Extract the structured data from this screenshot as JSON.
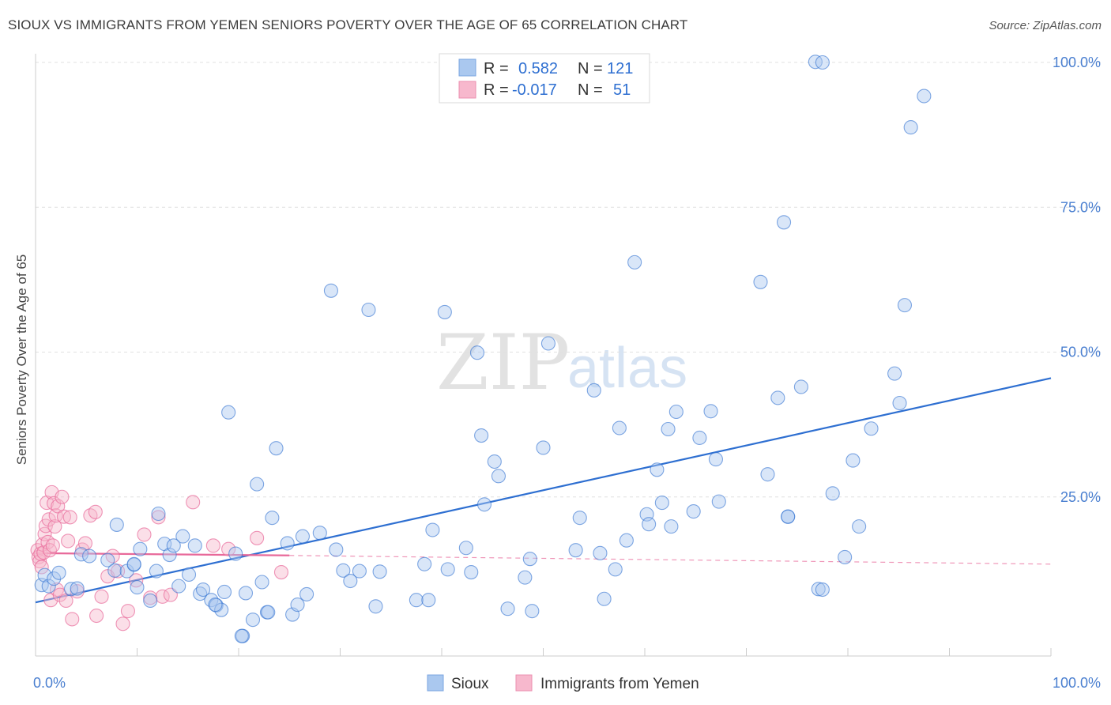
{
  "title": "SIOUX VS IMMIGRANTS FROM YEMEN SENIORS POVERTY OVER THE AGE OF 65 CORRELATION CHART",
  "source": "Source: ZipAtlas.com",
  "watermark": {
    "zip": "ZIP",
    "atlas": "atlas"
  },
  "colors": {
    "blue": "#2e6fd1",
    "blue_fill": "#aac8ef",
    "pink": "#e8699a",
    "pink_fill": "#f7b8cd",
    "grid": "#e0e0e0",
    "axis_label": "#4a7fd0"
  },
  "legend": {
    "rows": [
      {
        "r_label": "R =",
        "r_value": "0.582",
        "n_label": "N =",
        "n_value": "121"
      },
      {
        "r_label": "R =",
        "r_value": "-0.017",
        "n_label": "N =",
        "n_value": "51"
      }
    ]
  },
  "chart_data": {
    "type": "scatter",
    "title": "SIOUX VS IMMIGRANTS FROM YEMEN SENIORS POVERTY OVER THE AGE OF 65 CORRELATION CHART",
    "xlabel": "",
    "ylabel": "Seniors Poverty Over the Age of 65",
    "xlim": [
      0,
      100
    ],
    "ylim": [
      0,
      102
    ],
    "x_tick_labels": [
      "0.0%",
      "100.0%"
    ],
    "y_ticks": [
      25,
      50,
      75,
      100
    ],
    "y_tick_labels": [
      "25.0%",
      "50.0%",
      "75.0%",
      "100.0%"
    ],
    "legend_position": "top-center",
    "series": [
      {
        "name": "Sioux",
        "color": "#2e6fd1",
        "r": 0.582,
        "n": 121,
        "trend": {
          "x": [
            0,
            100
          ],
          "y": [
            6.8,
            45.5
          ],
          "style": "solid"
        },
        "points": [
          [
            0.6,
            9.8
          ],
          [
            0.9,
            11.5
          ],
          [
            1.3,
            9.6
          ],
          [
            1.8,
            10.9
          ],
          [
            2.3,
            11.9
          ],
          [
            3.5,
            9.1
          ],
          [
            4.5,
            15.1
          ],
          [
            4.1,
            9.2
          ],
          [
            5.3,
            14.8
          ],
          [
            7.1,
            14.1
          ],
          [
            7.8,
            12.3
          ],
          [
            9.0,
            12.2
          ],
          [
            9.7,
            13.3
          ],
          [
            10.3,
            16.0
          ],
          [
            8.0,
            20.2
          ],
          [
            10.0,
            9.4
          ],
          [
            11.3,
            7.1
          ],
          [
            11.9,
            12.2
          ],
          [
            12.1,
            22.1
          ],
          [
            12.7,
            16.9
          ],
          [
            13.2,
            15.0
          ],
          [
            14.1,
            9.6
          ],
          [
            14.5,
            18.2
          ],
          [
            15.1,
            11.6
          ],
          [
            15.7,
            16.6
          ],
          [
            16.2,
            8.3
          ],
          [
            16.5,
            9.0
          ],
          [
            17.3,
            7.2
          ],
          [
            17.8,
            6.3
          ],
          [
            18.3,
            5.5
          ],
          [
            18.6,
            8.6
          ],
          [
            19.0,
            39.6
          ],
          [
            19.7,
            15.2
          ],
          [
            20.4,
            1.0
          ],
          [
            20.7,
            8.4
          ],
          [
            21.4,
            3.8
          ],
          [
            21.8,
            27.2
          ],
          [
            22.3,
            10.3
          ],
          [
            22.8,
            5.1
          ],
          [
            23.3,
            21.4
          ],
          [
            23.7,
            33.4
          ],
          [
            24.8,
            17.0
          ],
          [
            25.3,
            4.7
          ],
          [
            25.8,
            6.4
          ],
          [
            26.3,
            18.2
          ],
          [
            26.7,
            8.2
          ],
          [
            28.0,
            18.8
          ],
          [
            29.1,
            60.6
          ],
          [
            29.6,
            15.9
          ],
          [
            30.3,
            12.3
          ],
          [
            31.0,
            10.5
          ],
          [
            31.9,
            12.2
          ],
          [
            32.8,
            57.3
          ],
          [
            33.5,
            6.1
          ],
          [
            33.9,
            12.1
          ],
          [
            37.5,
            7.2
          ],
          [
            38.3,
            13.4
          ],
          [
            38.7,
            7.2
          ],
          [
            39.1,
            19.3
          ],
          [
            40.3,
            56.9
          ],
          [
            40.6,
            12.5
          ],
          [
            42.4,
            16.2
          ],
          [
            42.9,
            12.0
          ],
          [
            43.5,
            49.9
          ],
          [
            43.9,
            35.6
          ],
          [
            44.2,
            23.7
          ],
          [
            45.2,
            31.1
          ],
          [
            45.6,
            28.6
          ],
          [
            46.5,
            5.7
          ],
          [
            48.2,
            11.1
          ],
          [
            48.7,
            14.3
          ],
          [
            48.9,
            5.3
          ],
          [
            50.0,
            33.5
          ],
          [
            50.5,
            51.5
          ],
          [
            53.2,
            15.8
          ],
          [
            53.6,
            21.4
          ],
          [
            55.0,
            43.4
          ],
          [
            55.6,
            15.3
          ],
          [
            56.0,
            7.4
          ],
          [
            57.1,
            12.5
          ],
          [
            57.5,
            36.9
          ],
          [
            58.2,
            17.5
          ],
          [
            59.0,
            65.5
          ],
          [
            60.2,
            22.0
          ],
          [
            60.4,
            20.3
          ],
          [
            61.7,
            24.0
          ],
          [
            61.2,
            29.7
          ],
          [
            62.3,
            36.7
          ],
          [
            62.6,
            19.9
          ],
          [
            63.1,
            39.7
          ],
          [
            64.8,
            22.5
          ],
          [
            65.4,
            35.2
          ],
          [
            66.5,
            39.8
          ],
          [
            67.0,
            31.5
          ],
          [
            67.3,
            24.2
          ],
          [
            71.4,
            62.1
          ],
          [
            72.1,
            28.9
          ],
          [
            73.1,
            42.1
          ],
          [
            73.7,
            72.4
          ],
          [
            74.1,
            21.6
          ],
          [
            75.4,
            44.0
          ],
          [
            76.8,
            100.1
          ],
          [
            77.5,
            100.0
          ],
          [
            77.1,
            9.1
          ],
          [
            77.5,
            9.0
          ],
          [
            78.5,
            25.6
          ],
          [
            79.7,
            14.6
          ],
          [
            80.5,
            31.3
          ],
          [
            81.1,
            19.9
          ],
          [
            82.3,
            36.8
          ],
          [
            84.6,
            46.3
          ],
          [
            85.1,
            41.2
          ],
          [
            85.6,
            58.1
          ],
          [
            86.2,
            88.8
          ],
          [
            87.5,
            94.2
          ],
          [
            74.1,
            21.6
          ],
          [
            22.9,
            5.1
          ],
          [
            13.6,
            16.6
          ],
          [
            9.7,
            13.4
          ],
          [
            17.7,
            6.4
          ],
          [
            20.3,
            1.0
          ]
        ]
      },
      {
        "name": "Immigrants from Yemen",
        "color": "#e8699a",
        "r": -0.017,
        "n": 51,
        "trend": {
          "x": [
            0,
            25
          ],
          "y": [
            15.3,
            14.9
          ],
          "style": "solid",
          "dashed_extension": {
            "x": [
              25,
              100
            ],
            "y": [
              14.9,
              13.4
            ]
          }
        },
        "points": [
          [
            0.2,
            15.8
          ],
          [
            0.3,
            14.6
          ],
          [
            0.4,
            13.9
          ],
          [
            0.5,
            15.2
          ],
          [
            0.6,
            12.9
          ],
          [
            0.7,
            16.8
          ],
          [
            0.8,
            15.4
          ],
          [
            0.9,
            18.6
          ],
          [
            1.0,
            20.0
          ],
          [
            1.1,
            24.0
          ],
          [
            1.2,
            17.2
          ],
          [
            1.3,
            21.1
          ],
          [
            1.4,
            15.8
          ],
          [
            1.5,
            7.2
          ],
          [
            1.6,
            25.8
          ],
          [
            1.7,
            16.6
          ],
          [
            1.8,
            23.9
          ],
          [
            1.9,
            19.9
          ],
          [
            2.0,
            21.8
          ],
          [
            2.1,
            9.0
          ],
          [
            2.2,
            23.4
          ],
          [
            2.4,
            8.1
          ],
          [
            2.6,
            25.0
          ],
          [
            2.8,
            21.6
          ],
          [
            3.0,
            7.1
          ],
          [
            3.2,
            17.4
          ],
          [
            3.4,
            21.5
          ],
          [
            3.6,
            3.9
          ],
          [
            4.1,
            8.7
          ],
          [
            4.6,
            15.9
          ],
          [
            4.9,
            17.0
          ],
          [
            5.4,
            21.8
          ],
          [
            5.9,
            22.4
          ],
          [
            6.0,
            4.5
          ],
          [
            6.5,
            7.8
          ],
          [
            7.1,
            11.3
          ],
          [
            7.6,
            14.8
          ],
          [
            8.1,
            12.2
          ],
          [
            8.6,
            3.1
          ],
          [
            9.1,
            5.3
          ],
          [
            9.9,
            10.6
          ],
          [
            10.7,
            18.5
          ],
          [
            11.3,
            7.6
          ],
          [
            12.1,
            21.5
          ],
          [
            12.5,
            7.8
          ],
          [
            13.3,
            8.1
          ],
          [
            15.5,
            24.1
          ],
          [
            17.5,
            16.6
          ],
          [
            19.0,
            16.0
          ],
          [
            21.8,
            17.9
          ],
          [
            24.2,
            12.0
          ]
        ]
      }
    ]
  },
  "bottom_legend": [
    "Sioux",
    "Immigrants from Yemen"
  ]
}
